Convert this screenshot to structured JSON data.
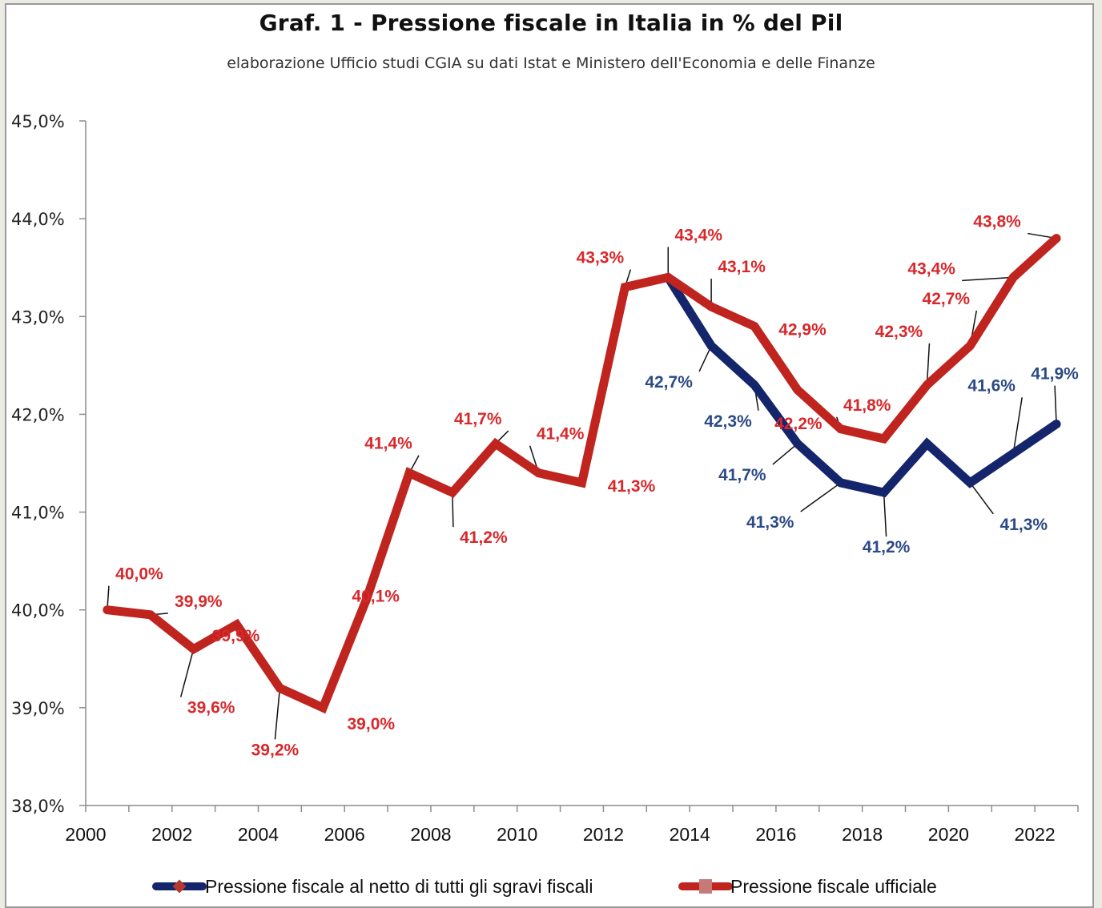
{
  "chart_data": {
    "type": "line",
    "title": "Graf. 1 - Pressione fiscale in Italia in % del Pil",
    "subtitle": "elaborazione  Ufficio studi CGIA su dati Istat e Ministero dell'Economia e delle Finanze",
    "xlabel": "",
    "ylabel": "",
    "x": [
      2000,
      2001,
      2002,
      2003,
      2004,
      2005,
      2006,
      2007,
      2008,
      2009,
      2010,
      2011,
      2012,
      2013,
      2014,
      2015,
      2016,
      2017,
      2018,
      2019,
      2020,
      2021,
      2022
    ],
    "x_tick_labels": [
      "2000",
      "2002",
      "2004",
      "2006",
      "2008",
      "2010",
      "2012",
      "2014",
      "2016",
      "2018",
      "2020",
      "2022"
    ],
    "ylim": [
      38.0,
      45.0
    ],
    "y_tick_labels": [
      "38,0%",
      "39,0%",
      "40,0%",
      "41,0%",
      "42,0%",
      "43,0%",
      "44,0%",
      "45,0%"
    ],
    "y_ticks": [
      38,
      39,
      40,
      41,
      42,
      43,
      44,
      45
    ],
    "grid": false,
    "legend_position": "bottom",
    "series": [
      {
        "name": "Pressione fiscale al netto di tutti gli sgravi fiscali",
        "color": "#15256b",
        "marker_color": "#b5392e",
        "values": [
          null,
          null,
          null,
          null,
          null,
          null,
          null,
          null,
          null,
          null,
          null,
          null,
          null,
          43.4,
          42.7,
          42.3,
          41.7,
          41.3,
          41.2,
          41.7,
          41.3,
          41.6,
          41.9
        ],
        "labels": [
          null,
          null,
          null,
          null,
          null,
          null,
          null,
          null,
          null,
          null,
          null,
          null,
          null,
          null,
          "42,7%",
          "42,3%",
          "41,7%",
          "41,3%",
          "41,2%",
          null,
          "41,3%",
          "41,6%",
          "41,9%"
        ],
        "label_color": "#2c4a86"
      },
      {
        "name": "Pressione fiscale ufficiale",
        "color": "#c0241f",
        "marker_color": "#c57a78",
        "values": [
          40.0,
          39.95,
          39.6,
          39.85,
          39.2,
          39.0,
          40.1,
          41.4,
          41.2,
          41.7,
          41.4,
          41.3,
          43.3,
          43.4,
          43.1,
          42.9,
          42.25,
          41.85,
          41.75,
          42.3,
          42.7,
          43.4,
          43.8
        ],
        "labels": [
          "40,0%",
          "39,9%",
          "39,6%",
          "39,9%",
          "39,2%",
          "39,0%",
          "40,1%",
          "41,4%",
          "41,2%",
          "41,7%",
          "41,4%",
          "41,3%",
          "43,3%",
          "43,4%",
          "43,1%",
          "42,9%",
          "42,2%",
          "41,8%",
          null,
          "42,3%",
          "42,7%",
          "43,4%",
          "43,8%"
        ],
        "label_color": "#d8282b"
      }
    ]
  }
}
